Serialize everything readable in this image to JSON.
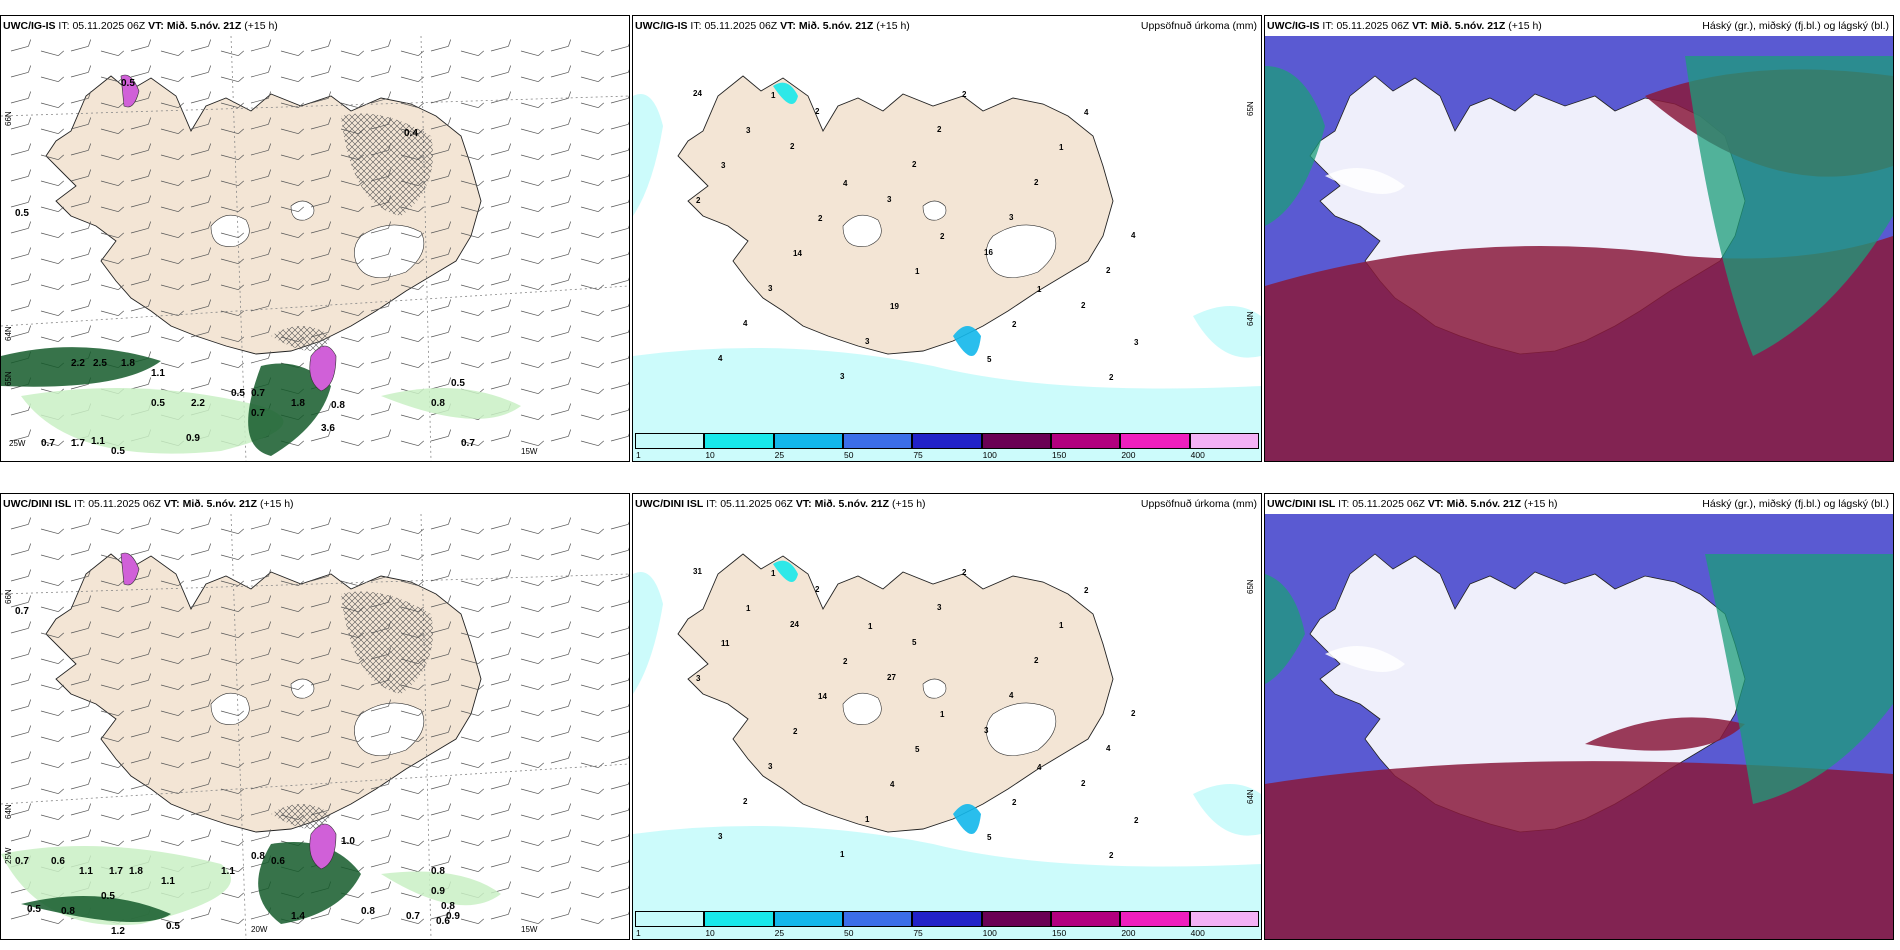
{
  "panels": [
    {
      "model": "UWC/IG-IS",
      "it_label": "IT:",
      "it": "05.11.2025 06Z",
      "vt_label": "VT:",
      "vt": "Mið. 5.nóv. 21Z",
      "lead": "(+15 h)",
      "right_title": "",
      "lat_labels": [
        "66N",
        "64N",
        "65N"
      ],
      "lon_labels": [
        "25W",
        "15W"
      ],
      "values": [
        "0.5",
        "0.4",
        "0.5",
        "2.2",
        "2.5",
        "1.8",
        "1.1",
        "0.5",
        "2.2",
        "0.5",
        "0.7",
        "1.8",
        "0.8",
        "3.6",
        "0.5",
        "0.7",
        "0.9",
        "0.7",
        "1.7",
        "1.1",
        "0.5",
        "0.8",
        "0.7"
      ]
    },
    {
      "model": "UWC/IG-IS",
      "it_label": "IT:",
      "it": "05.11.2025 06Z",
      "vt_label": "VT:",
      "vt": "Mið. 5.nóv. 21Z",
      "lead": "(+15 h)",
      "right_title": "Uppsöfnuð úrkoma (mm)",
      "lat_labels": [
        "65N",
        "64N"
      ],
      "values": [
        "24",
        "2",
        "3",
        "16",
        "2",
        "4",
        "2",
        "2",
        "3",
        "2",
        "4",
        "3",
        "2",
        "2",
        "4",
        "3",
        "3",
        "2",
        "1",
        "2",
        "14",
        "19",
        "5",
        "4",
        "3",
        "2",
        "1",
        "2",
        "2",
        "3",
        "4",
        "2",
        "1",
        "3",
        "1"
      ],
      "colorbar": {
        "ticks": [
          "1",
          "10",
          "25",
          "50",
          "75",
          "100",
          "150",
          "200",
          "400"
        ],
        "colors": [
          "#c6fbfb",
          "#18e8ea",
          "#12b7eb",
          "#3b6ee8",
          "#2222c8",
          "#6a0054",
          "#b2007f",
          "#ef1fbd",
          "#f3b1f5"
        ]
      }
    },
    {
      "model": "UWC/IG-IS",
      "it_label": "IT:",
      "it": "05.11.2025 06Z",
      "vt_label": "VT:",
      "vt": "Mið. 5.nóv. 21Z",
      "lead": "(+15 h)",
      "right_title": "Háský (gr.), miðský (fj.bl.) og lágský (bl.)"
    },
    {
      "model": "UWC/DINI ISL",
      "it_label": "IT:",
      "it": "05.11.2025 06Z",
      "vt_label": "VT:",
      "vt": "Mið. 5.nóv. 21Z",
      "lead": "(+15 h)",
      "right_title": "",
      "lat_labels": [
        "66N",
        "64N",
        "25W"
      ],
      "lon_labels": [
        "20W",
        "15W"
      ],
      "values": [
        "0.7",
        "0.7",
        "0.6",
        "1.1",
        "1.7",
        "1.8",
        "1.1",
        "1.1",
        "0.8",
        "0.6",
        "1.0",
        "0.5",
        "0.5",
        "0.8",
        "1.2",
        "0.5",
        "0.8",
        "0.8",
        "0.7",
        "0.9",
        "0.8",
        "0.9",
        "0.6",
        "1.4"
      ]
    },
    {
      "model": "UWC/DINI ISL",
      "it_label": "IT:",
      "it": "05.11.2025 06Z",
      "vt_label": "VT:",
      "vt": "Mið. 5.nóv. 21Z",
      "lead": "(+15 h)",
      "right_title": "Uppsöfnuð úrkoma (mm)",
      "lat_labels": [
        "65N",
        "64N"
      ],
      "values": [
        "31",
        "24",
        "27",
        "3",
        "2",
        "3",
        "2",
        "5",
        "4",
        "4",
        "2",
        "1",
        "3",
        "2",
        "2",
        "3",
        "1",
        "2",
        "1",
        "3",
        "2",
        "4",
        "5",
        "2",
        "11",
        "14",
        "5",
        "2",
        "2",
        "1",
        "2",
        "1",
        "4",
        "2",
        "1",
        "1"
      ],
      "colorbar": {
        "ticks": [
          "1",
          "10",
          "25",
          "50",
          "75",
          "100",
          "150",
          "200",
          "400"
        ],
        "colors": [
          "#c6fbfb",
          "#18e8ea",
          "#12b7eb",
          "#3b6ee8",
          "#2222c8",
          "#6a0054",
          "#b2007f",
          "#ef1fbd",
          "#f3b1f5"
        ]
      }
    },
    {
      "model": "UWC/DINI ISL",
      "it_label": "IT:",
      "it": "05.11.2025 06Z",
      "vt_label": "VT:",
      "vt": "Mið. 5.nóv. 21Z",
      "lead": "(+15 h)",
      "right_title": "Háský (gr.), miðský (fj.bl.) og lágský (bl.)"
    }
  ],
  "colors": {
    "land": "#f3e5d5",
    "sea": "#ffffff",
    "cloud_high_green": "#1c9e7a",
    "cloud_mid_red": "#8a1a3c",
    "cloud_low_blue": "#5a5ad2",
    "precip_green_light": "#c9f0c4",
    "precip_green_dark": "#145a2a",
    "precip_magenta": "#d060d8"
  }
}
